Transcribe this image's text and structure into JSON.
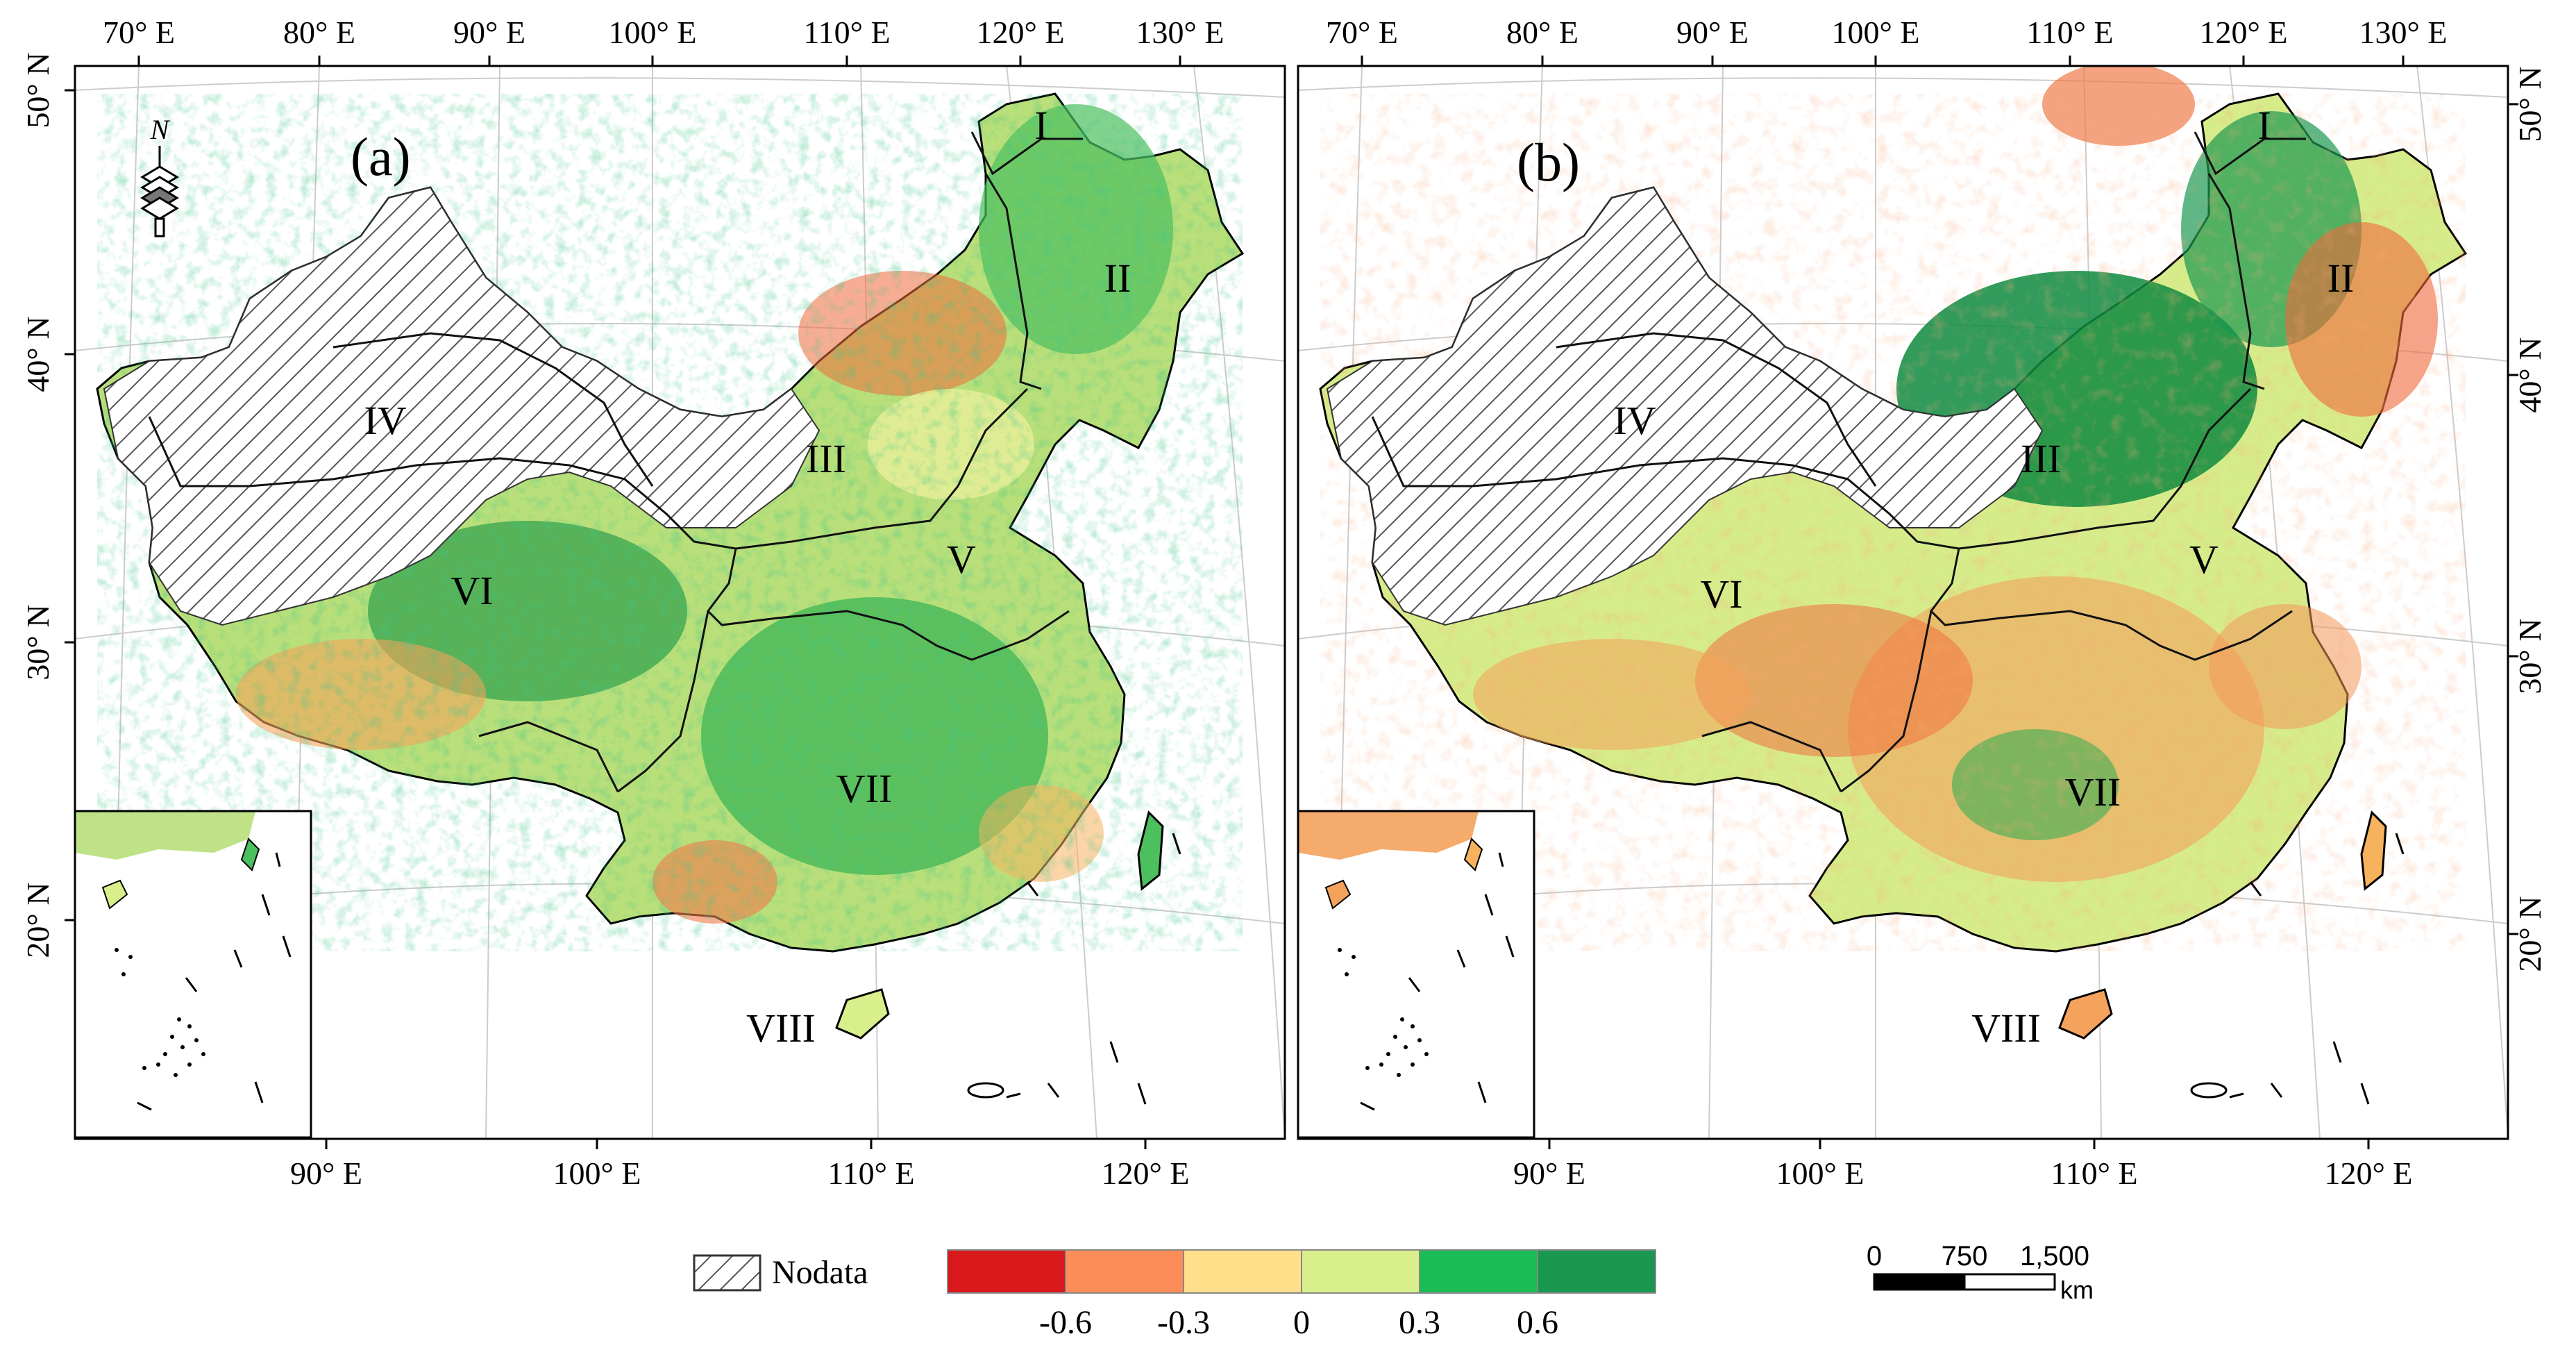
{
  "panels": [
    {
      "id": "a",
      "label": "(a)",
      "top_longitudes": [
        "70° E",
        "80° E",
        "90° E",
        "100° E",
        "110° E",
        "120° E",
        "130° E"
      ],
      "left_latitudes": [
        "50° N",
        "40° N",
        "30° N",
        "20° N"
      ],
      "bottom_longitudes": [
        "90° E",
        "100° E",
        "110° E",
        "120° E"
      ]
    },
    {
      "id": "b",
      "label": "(b)",
      "top_longitudes": [
        "70° E",
        "80° E",
        "90° E",
        "100° E",
        "110° E",
        "120° E",
        "130° E"
      ],
      "right_latitudes": [
        "50° N",
        "40° N",
        "30° N",
        "20° N"
      ],
      "bottom_longitudes": [
        "90° E",
        "100° E",
        "110° E",
        "120° E"
      ]
    }
  ],
  "regions": [
    "I",
    "II",
    "III",
    "IV",
    "V",
    "VI",
    "VII",
    "VIII"
  ],
  "north_arrow": {
    "label": "N"
  },
  "legend": {
    "nodata_label": "Nodata",
    "colors": [
      "#d7191c",
      "#fc8d59",
      "#fee08b",
      "#d9ef8b",
      "#1abc55",
      "#1a9850"
    ],
    "tick_labels": [
      "-0.6",
      "-0.3",
      "0",
      "0.3",
      "0.6"
    ]
  },
  "scale_bar": {
    "labels": [
      "0",
      "750",
      "1,500"
    ],
    "unit": "km"
  }
}
